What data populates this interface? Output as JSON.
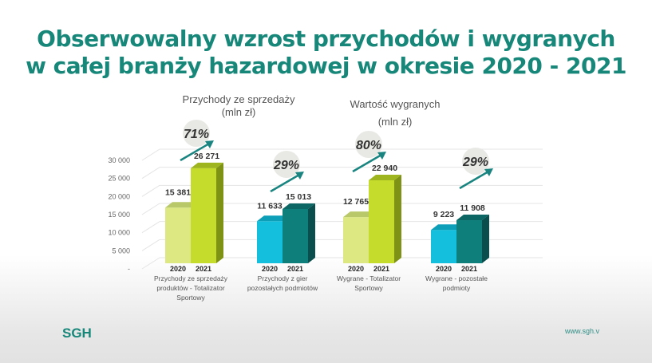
{
  "title_line1": "Obserwowalny wzrost przychodów i wygranych",
  "title_line2": "w całej branży hazardowej w okresie 2020 - 2021",
  "footer": {
    "logo": "SGH",
    "url": "www.sgh.v"
  },
  "colors": {
    "title": "#17877a",
    "lime_light": "#dde883",
    "lime": "#c6dc2c",
    "cyan": "#13bfdc",
    "teal": "#0f7f7b"
  },
  "chart_data": {
    "type": "bar",
    "section_titles": [
      {
        "line1": "Przychody ze sprzedaży",
        "line2": "(mln zł)"
      },
      {
        "line1": "Wartość wygranych",
        "line2": "(mln zł)"
      }
    ],
    "y_ticks": [
      "30 000",
      "25 000",
      "20 000",
      "15 000",
      "10 000",
      "5 000",
      "-"
    ],
    "ylim": [
      0,
      30000
    ],
    "series_names": [
      "2020",
      "2021"
    ],
    "groups": [
      {
        "label": [
          "Przychody ze sprzedaży",
          "produktów - Totalizator",
          "Sportowy"
        ],
        "values": [
          15381,
          26271
        ],
        "value_labels": [
          "15 381",
          "26 271"
        ],
        "growth": "71%",
        "palette": "lime"
      },
      {
        "label": [
          "Przychody z gier",
          "pozostałych podmiotów"
        ],
        "values": [
          11633,
          15013
        ],
        "value_labels": [
          "11 633",
          "15 013"
        ],
        "growth": "29%",
        "palette": "teal"
      },
      {
        "label": [
          "Wygrane - Totalizator",
          "Sportowy"
        ],
        "values": [
          12765,
          22940
        ],
        "value_labels": [
          "12 765",
          "22 940"
        ],
        "growth": "80%",
        "palette": "lime"
      },
      {
        "label": [
          "Wygrane - pozostałe",
          "podmioty"
        ],
        "values": [
          9223,
          11908
        ],
        "value_labels": [
          "9 223",
          "11 908"
        ],
        "growth": "29%",
        "palette": "teal"
      }
    ]
  }
}
